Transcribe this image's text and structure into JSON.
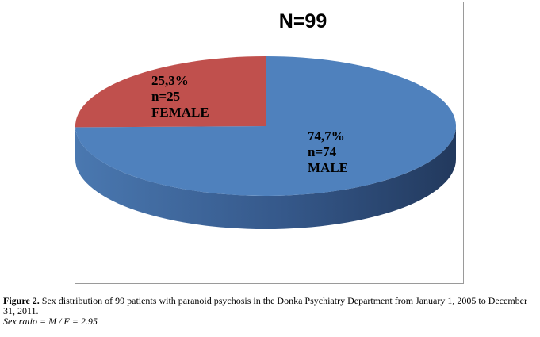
{
  "chart_data": {
    "type": "pie",
    "title": "N=99",
    "total": 99,
    "slices": [
      {
        "pct_label": "74,7%",
        "n_label": "n=74",
        "name_label": "MALE",
        "value": 74,
        "color": "#4f81bd",
        "side_color": "#2f4f7e"
      },
      {
        "pct_label": "25,3%",
        "n_label": "n=25",
        "name_label": "FEMALE",
        "value": 25,
        "color": "#c0504d",
        "side_color": "#8c3230"
      }
    ]
  },
  "caption": {
    "figure_label": "Figure 2.",
    "text": " Sex distribution of 99 patients with paranoid psychosis in the Donka Psychiatry Department from January 1, 2005 to December 31, 2011.",
    "ratio": "Sex ratio = M / F = 2.95"
  }
}
